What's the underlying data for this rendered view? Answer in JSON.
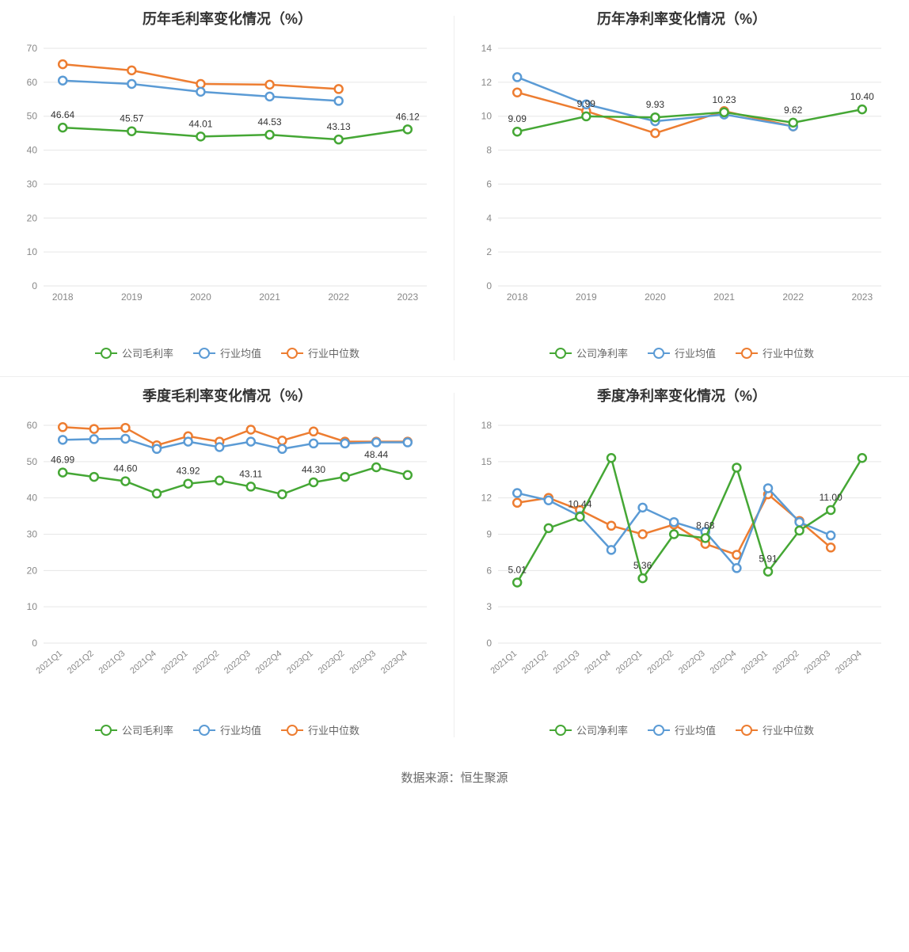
{
  "colors": {
    "company": "#45a735",
    "avg": "#5b9bd5",
    "median": "#ed7d31",
    "grid": "#e6e6e6",
    "axis": "#888",
    "bg": "#ffffff"
  },
  "line_width": 2.5,
  "marker_radius": 5,
  "chart1": {
    "title": "历年毛利率变化情况（%）",
    "type": "line",
    "categories": [
      "2018",
      "2019",
      "2020",
      "2021",
      "2022",
      "2023"
    ],
    "ylim": [
      0,
      70
    ],
    "ytick_step": 10,
    "series": [
      {
        "name": "公司毛利率",
        "color": "#45a735",
        "values": [
          46.64,
          45.57,
          44.01,
          44.53,
          43.13,
          46.12
        ],
        "labels": [
          "46.64",
          "45.57",
          "44.01",
          "44.53",
          "43.13",
          "46.12"
        ]
      },
      {
        "name": "行业均值",
        "color": "#5b9bd5",
        "values": [
          60.5,
          59.5,
          57.2,
          55.8,
          54.5,
          null
        ]
      },
      {
        "name": "行业中位数",
        "color": "#ed7d31",
        "values": [
          65.3,
          63.5,
          59.5,
          59.3,
          58.0,
          null
        ]
      }
    ],
    "legend": [
      "公司毛利率",
      "行业均值",
      "行业中位数"
    ]
  },
  "chart2": {
    "title": "历年净利率变化情况（%）",
    "type": "line",
    "categories": [
      "2018",
      "2019",
      "2020",
      "2021",
      "2022",
      "2023"
    ],
    "ylim": [
      0,
      14
    ],
    "ytick_step": 2,
    "series": [
      {
        "name": "公司净利率",
        "color": "#45a735",
        "values": [
          9.09,
          9.99,
          9.93,
          10.23,
          9.62,
          10.4
        ],
        "labels": [
          "9.09",
          "9.99",
          "9.93",
          "10.23",
          "9.62",
          "10.40"
        ]
      },
      {
        "name": "行业均值",
        "color": "#5b9bd5",
        "values": [
          12.3,
          10.7,
          9.7,
          10.1,
          9.4,
          null
        ]
      },
      {
        "name": "行业中位数",
        "color": "#ed7d31",
        "values": [
          11.4,
          10.3,
          9.0,
          10.3,
          9.4,
          null
        ]
      }
    ],
    "legend": [
      "公司净利率",
      "行业均值",
      "行业中位数"
    ]
  },
  "chart3": {
    "title": "季度毛利率变化情况（%）",
    "type": "line",
    "categories": [
      "2021Q1",
      "2021Q2",
      "2021Q3",
      "2021Q4",
      "2022Q1",
      "2022Q2",
      "2022Q3",
      "2022Q4",
      "2023Q1",
      "2023Q2",
      "2023Q3",
      "2023Q4"
    ],
    "ylim": [
      0,
      60
    ],
    "ytick_step": 10,
    "rot": true,
    "series": [
      {
        "name": "公司毛利率",
        "color": "#45a735",
        "values": [
          46.99,
          45.8,
          44.6,
          41.2,
          43.92,
          44.8,
          43.11,
          41.0,
          44.3,
          45.8,
          48.44,
          46.3
        ],
        "labels": [
          "46.99",
          "",
          "44.60",
          "",
          "43.92",
          "",
          "43.11",
          "",
          "44.30",
          "",
          "48.44",
          ""
        ]
      },
      {
        "name": "行业均值",
        "color": "#5b9bd5",
        "values": [
          56.0,
          56.2,
          56.3,
          53.5,
          55.5,
          54.0,
          55.5,
          53.5,
          55.0,
          55.0,
          55.3,
          55.3
        ]
      },
      {
        "name": "行业中位数",
        "color": "#ed7d31",
        "values": [
          59.5,
          59.0,
          59.3,
          54.5,
          57.0,
          55.5,
          58.8,
          55.8,
          58.3,
          55.5,
          55.5,
          55.5
        ]
      }
    ],
    "legend": [
      "公司毛利率",
      "行业均值",
      "行业中位数"
    ]
  },
  "chart4": {
    "title": "季度净利率变化情况（%）",
    "type": "line",
    "categories": [
      "2021Q1",
      "2021Q2",
      "2021Q3",
      "2021Q4",
      "2022Q1",
      "2022Q2",
      "2022Q3",
      "2022Q4",
      "2023Q1",
      "2023Q2",
      "2023Q3",
      "2023Q4"
    ],
    "ylim": [
      0,
      18
    ],
    "ytick_step": 3,
    "rot": true,
    "series": [
      {
        "name": "公司净利率",
        "color": "#45a735",
        "values": [
          5.01,
          9.5,
          10.44,
          15.3,
          5.36,
          9.0,
          8.68,
          14.5,
          5.91,
          9.3,
          11.0,
          15.3
        ],
        "labels": [
          "5.01",
          "",
          "10.44",
          "",
          "5.36",
          "",
          "8.68",
          "",
          "5.91",
          "",
          "11.00",
          ""
        ]
      },
      {
        "name": "行业均值",
        "color": "#5b9bd5",
        "values": [
          12.4,
          11.8,
          10.5,
          7.7,
          11.2,
          10.0,
          9.2,
          6.2,
          12.8,
          10.0,
          8.9,
          null
        ]
      },
      {
        "name": "行业中位数",
        "color": "#ed7d31",
        "values": [
          11.6,
          12.0,
          11.0,
          9.7,
          9.0,
          9.8,
          8.2,
          7.3,
          12.3,
          10.1,
          7.9,
          null
        ]
      }
    ],
    "legend": [
      "公司净利率",
      "行业均值",
      "行业中位数"
    ]
  },
  "footer": "数据来源：恒生聚源"
}
